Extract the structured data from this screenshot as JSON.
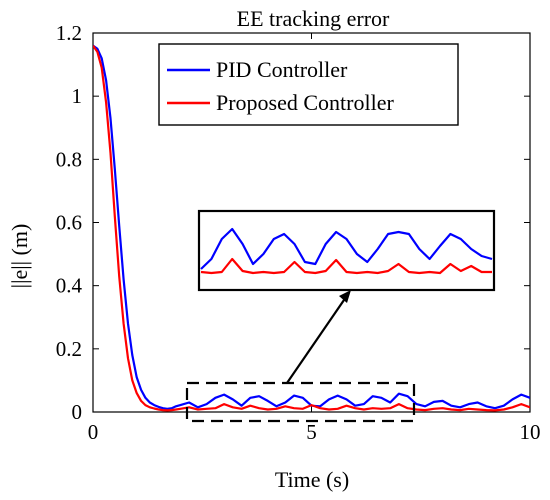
{
  "chart_data": {
    "type": "line",
    "title": "EE tracking error",
    "xlabel": "Time (s)",
    "ylabel": "||e|| (m)",
    "xlim": [
      0,
      10
    ],
    "ylim": [
      0,
      1.2
    ],
    "xticks": [
      "0",
      "5",
      "10"
    ],
    "yticks": [
      "0",
      "0.2",
      "0.4",
      "0.6",
      "0.8",
      "1",
      "1.2"
    ],
    "grid": false,
    "legend_position": "top-right",
    "series": [
      {
        "name": "PID Controller",
        "color": "#0000ff",
        "x": [
          0,
          0.1,
          0.2,
          0.3,
          0.4,
          0.5,
          0.6,
          0.7,
          0.8,
          0.9,
          1.0,
          1.1,
          1.2,
          1.3,
          1.4,
          1.5,
          1.6,
          1.7,
          1.8,
          1.9,
          2.0,
          2.2,
          2.4,
          2.6,
          2.8,
          3.0,
          3.2,
          3.4,
          3.6,
          3.8,
          4.0,
          4.2,
          4.4,
          4.6,
          4.8,
          5.0,
          5.2,
          5.4,
          5.6,
          5.8,
          6.0,
          6.2,
          6.4,
          6.6,
          6.8,
          7.0,
          7.2,
          7.4,
          7.6,
          7.8,
          8.0,
          8.2,
          8.4,
          8.6,
          8.8,
          9.0,
          9.2,
          9.4,
          9.6,
          9.8,
          10.0
        ],
        "y": [
          1.16,
          1.15,
          1.12,
          1.05,
          0.93,
          0.77,
          0.59,
          0.42,
          0.28,
          0.18,
          0.11,
          0.07,
          0.045,
          0.03,
          0.022,
          0.016,
          0.012,
          0.01,
          0.012,
          0.018,
          0.022,
          0.03,
          0.015,
          0.025,
          0.045,
          0.055,
          0.04,
          0.02,
          0.045,
          0.05,
          0.035,
          0.018,
          0.03,
          0.052,
          0.045,
          0.02,
          0.018,
          0.04,
          0.052,
          0.04,
          0.02,
          0.025,
          0.05,
          0.045,
          0.03,
          0.058,
          0.05,
          0.025,
          0.018,
          0.032,
          0.035,
          0.02,
          0.015,
          0.025,
          0.03,
          0.018,
          0.012,
          0.02,
          0.04,
          0.055,
          0.045
        ]
      },
      {
        "name": "Proposed Controller",
        "color": "#ff0000",
        "x": [
          0,
          0.1,
          0.2,
          0.3,
          0.4,
          0.5,
          0.6,
          0.7,
          0.8,
          0.9,
          1.0,
          1.1,
          1.2,
          1.3,
          1.4,
          1.5,
          1.6,
          1.7,
          1.8,
          1.9,
          2.0,
          2.2,
          2.4,
          2.6,
          2.8,
          3.0,
          3.2,
          3.4,
          3.6,
          3.8,
          4.0,
          4.2,
          4.4,
          4.6,
          4.8,
          5.0,
          5.2,
          5.4,
          5.6,
          5.8,
          6.0,
          6.2,
          6.4,
          6.6,
          6.8,
          7.0,
          7.2,
          7.4,
          7.6,
          7.8,
          8.0,
          8.2,
          8.4,
          8.6,
          8.8,
          9.0,
          9.2,
          9.4,
          9.6,
          9.8,
          10.0
        ],
        "y": [
          1.16,
          1.14,
          1.09,
          0.98,
          0.82,
          0.62,
          0.43,
          0.28,
          0.17,
          0.1,
          0.06,
          0.035,
          0.022,
          0.015,
          0.011,
          0.008,
          0.006,
          0.005,
          0.006,
          0.008,
          0.01,
          0.015,
          0.008,
          0.01,
          0.012,
          0.025,
          0.015,
          0.01,
          0.02,
          0.012,
          0.008,
          0.01,
          0.018,
          0.012,
          0.01,
          0.022,
          0.012,
          0.008,
          0.01,
          0.02,
          0.012,
          0.008,
          0.012,
          0.01,
          0.012,
          0.025,
          0.012,
          0.008,
          0.006,
          0.01,
          0.012,
          0.008,
          0.006,
          0.01,
          0.008,
          0.006,
          0.005,
          0.008,
          0.015,
          0.025,
          0.015
        ]
      }
    ],
    "inset": {
      "description_source": "zoomed view of steady-state region",
      "xlim": [
        2,
        7.6
      ],
      "pid_y": [
        0.015,
        0.025,
        0.045,
        0.055,
        0.04,
        0.02,
        0.03,
        0.045,
        0.05,
        0.04,
        0.022,
        0.02,
        0.04,
        0.052,
        0.045,
        0.03,
        0.022,
        0.035,
        0.05,
        0.052,
        0.05,
        0.035,
        0.025,
        0.038,
        0.05,
        0.045,
        0.035,
        0.028,
        0.025
      ],
      "prop_y": [
        0.012,
        0.011,
        0.012,
        0.025,
        0.013,
        0.011,
        0.012,
        0.011,
        0.012,
        0.022,
        0.012,
        0.011,
        0.013,
        0.024,
        0.012,
        0.011,
        0.012,
        0.011,
        0.013,
        0.02,
        0.012,
        0.011,
        0.012,
        0.011,
        0.02,
        0.013,
        0.018,
        0.012,
        0.012
      ]
    }
  }
}
